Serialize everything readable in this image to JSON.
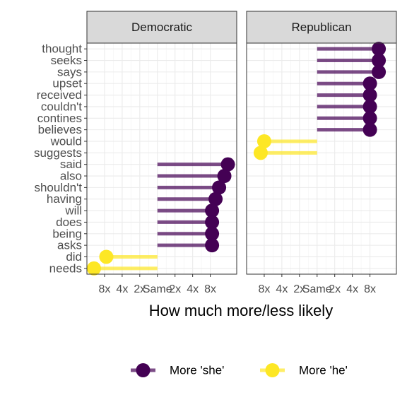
{
  "chart_data": {
    "type": "lollipop",
    "x_label": "How much more/less likely",
    "categories": [
      "thought",
      "seeks",
      "says",
      "upset",
      "received",
      "couldn't",
      "contines",
      "believes",
      "would",
      "suggests",
      "said",
      "also",
      "shouldn't",
      "having",
      "will",
      "does",
      "being",
      "asks",
      "did",
      "needs"
    ],
    "xlim": [
      -4,
      4.5
    ],
    "xticks": [
      {
        "value": -3,
        "label": "8x"
      },
      {
        "value": -2,
        "label": "4x"
      },
      {
        "value": -1,
        "label": "2x"
      },
      {
        "value": 0,
        "label": "Same"
      },
      {
        "value": 1,
        "label": "2x"
      },
      {
        "value": 2,
        "label": "4x"
      },
      {
        "value": 3,
        "label": "8x"
      }
    ],
    "grid": true,
    "legend": "bottom",
    "series": [
      {
        "name": "More 'she'",
        "color": "#440154"
      },
      {
        "name": "More 'he'",
        "color": "#FDE725"
      }
    ],
    "facets": [
      {
        "title": "Democratic",
        "values": [
          [
            null,
            null,
            null,
            null,
            null,
            null,
            null,
            null,
            null,
            null,
            4.0,
            3.8,
            3.5,
            3.3,
            3.1,
            3.1,
            3.1,
            3.1,
            null,
            null
          ],
          [
            null,
            null,
            null,
            null,
            null,
            null,
            null,
            null,
            null,
            null,
            null,
            null,
            null,
            null,
            null,
            null,
            null,
            null,
            -2.9,
            -3.6
          ]
        ]
      },
      {
        "title": "Republican",
        "values": [
          [
            3.5,
            3.5,
            3.5,
            3.0,
            3.0,
            3.0,
            3.0,
            3.0,
            null,
            null,
            null,
            null,
            null,
            null,
            null,
            null,
            null,
            null,
            null,
            null
          ],
          [
            null,
            null,
            null,
            null,
            null,
            null,
            null,
            null,
            -3.0,
            -3.2,
            null,
            null,
            null,
            null,
            null,
            null,
            null,
            null,
            null,
            null
          ]
        ]
      }
    ]
  }
}
